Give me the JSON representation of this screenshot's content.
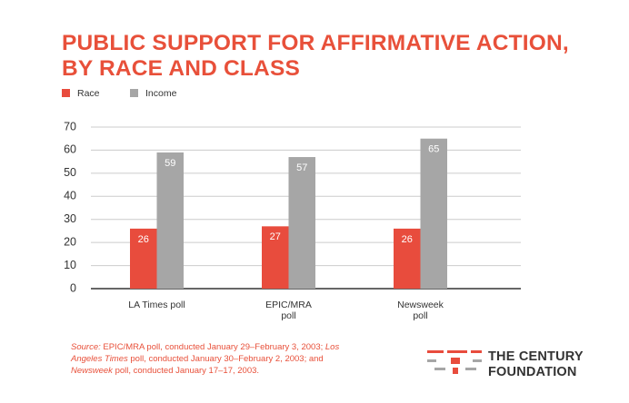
{
  "chart_data": {
    "type": "bar",
    "title": "PUBLIC SUPPORT FOR AFFIRMATIVE ACTION, BY RACE AND CLASS",
    "categories": [
      "LA Times poll",
      "EPIC/MRA poll",
      "Newsweek poll"
    ],
    "series": [
      {
        "name": "Race",
        "color": "#e84c3d",
        "values": [
          26,
          27,
          26
        ]
      },
      {
        "name": "Income",
        "color": "#a6a6a6",
        "values": [
          59,
          57,
          65
        ]
      }
    ],
    "ylim": [
      0,
      70
    ],
    "yticks": [
      0,
      10,
      20,
      30,
      40,
      50,
      60,
      70
    ],
    "grid": true,
    "source": [
      "Source:",
      " EPIC/MRA poll, conducted January 29–February 3, 2003; ",
      "Los Angeles Times",
      " poll, conducted January 30–February 2, 2003; and ",
      "Newsweek",
      " poll, conducted January 17–17, 2003."
    ]
  },
  "logo": {
    "line1": "THE CENTURY",
    "line2": "FOUNDATION"
  }
}
